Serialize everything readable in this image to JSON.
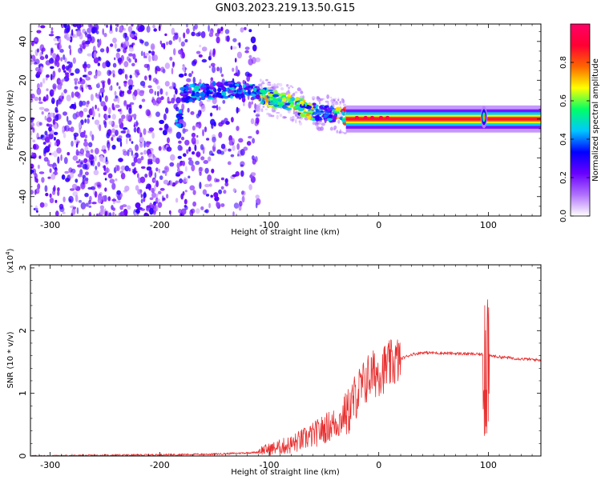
{
  "title": "GN03.2023.219.13.50.G15",
  "chart_data": [
    {
      "type": "heatmap",
      "xlabel": "Height of straight line (km)",
      "ylabel": "Frequency (Hz)",
      "xlim": [
        -318,
        148
      ],
      "ylim": [
        -50,
        49
      ],
      "xticks": [
        -300,
        -200,
        -100,
        0,
        100
      ],
      "yticks": [
        -40,
        -20,
        0,
        20,
        40
      ],
      "colorbar": {
        "label": "Normalized spectral amplitude",
        "range": [
          0.0,
          1.0
        ],
        "ticks": [
          0.0,
          0.2,
          0.4,
          0.6,
          0.8
        ],
        "colormap": [
          "#ffffff",
          "#b070ff",
          "#6a00ff",
          "#0000ff",
          "#00c8ff",
          "#00ff66",
          "#ffff00",
          "#ff6600",
          "#ff0033",
          "#ff0066"
        ]
      },
      "ridge_track": [
        {
          "x": -180,
          "y": 13
        },
        {
          "x": -160,
          "y": 14
        },
        {
          "x": -140,
          "y": 15
        },
        {
          "x": -120,
          "y": 15
        },
        {
          "x": -100,
          "y": 11
        },
        {
          "x": -80,
          "y": 8
        },
        {
          "x": -60,
          "y": 4
        },
        {
          "x": -40,
          "y": 2
        },
        {
          "x": -20,
          "y": 1
        },
        {
          "x": 0,
          "y": 0.5
        },
        {
          "x": 50,
          "y": 0
        },
        {
          "x": 100,
          "y": 0
        },
        {
          "x": 148,
          "y": 0
        }
      ]
    },
    {
      "type": "line",
      "xlabel": "Height of straight line (km)",
      "ylabel": "SNR (10 * v/v)",
      "y_multiplier": "(x10",
      "y_multiplier_exp": "4",
      "y_multiplier_close": ")",
      "xlim": [
        -318,
        148
      ],
      "ylim": [
        0,
        3.05
      ],
      "xticks": [
        -300,
        -200,
        -100,
        0,
        100
      ],
      "yticks": [
        0,
        1,
        2,
        3
      ],
      "series": [
        {
          "color": "#e83030",
          "x": [
            -318,
            -250,
            -200,
            -150,
            -120,
            -100,
            -80,
            -60,
            -45,
            -35,
            -25,
            -20,
            -15,
            -10,
            -5,
            0,
            10,
            20,
            30,
            40,
            60,
            80,
            95,
            98,
            100,
            102,
            110,
            130,
            148
          ],
          "y": [
            0.0,
            0.01,
            0.02,
            0.03,
            0.05,
            0.07,
            0.12,
            0.25,
            0.38,
            0.45,
            0.8,
            1.0,
            1.1,
            1.25,
            1.3,
            1.35,
            1.45,
            1.55,
            1.62,
            1.65,
            1.64,
            1.63,
            1.62,
            1.6,
            1.6,
            1.6,
            1.58,
            1.55,
            1.53
          ]
        }
      ]
    }
  ]
}
